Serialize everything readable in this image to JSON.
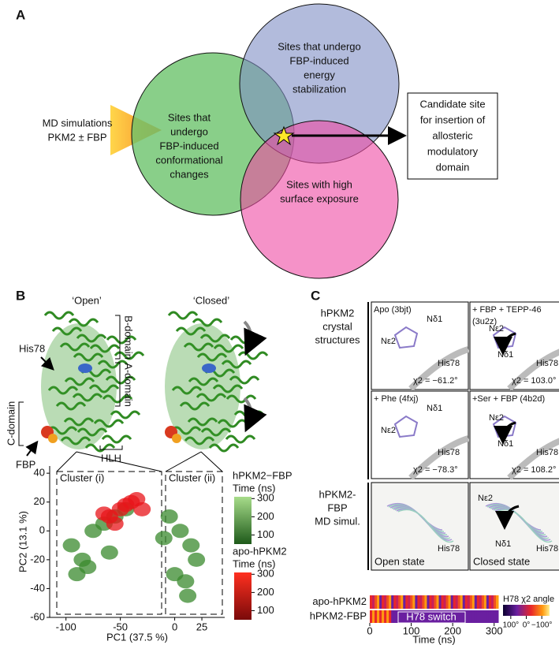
{
  "panel_a": {
    "label": "A",
    "input": [
      "MD simulations",
      "PKM2 ± FBP"
    ],
    "circles": [
      {
        "lines": [
          "Sites that",
          "undergo",
          "FBP-induced",
          "conformational",
          "changes"
        ]
      },
      {
        "lines": [
          "Sites that undergo",
          "FBP-induced",
          "energy",
          "stabilization"
        ]
      },
      {
        "lines": [
          "Sites with high",
          "surface exposure"
        ]
      }
    ],
    "result": [
      "Candidate site",
      "for insertion of",
      "allosteric",
      "modulatory",
      "domain"
    ]
  },
  "panel_b": {
    "label": "B",
    "states": [
      "‘Open’",
      "‘Closed’"
    ],
    "domains": [
      "B-domain",
      "A-domain",
      "C-domain",
      "HLH"
    ],
    "residue": "His78",
    "ligand": "FBP",
    "clusters": [
      "Cluster (i)",
      "Cluster (ii)"
    ]
  },
  "chart_data": [
    {
      "type": "scatter",
      "xlabel": "PC1 (37.5 %)",
      "ylabel": "PC2 (13.1 %)",
      "xlim": [
        -115,
        46
      ],
      "ylim": [
        -60,
        45
      ],
      "xticks": [
        -100,
        -50,
        0,
        25
      ],
      "yticks": [
        -60,
        -40,
        -20,
        0,
        20,
        40
      ],
      "colorbar_ticks": [
        100,
        200,
        300
      ],
      "clim": [
        50,
        310
      ],
      "series": [
        {
          "name": "hPKM2−FBP",
          "colorbar_label": "Time (ns)",
          "color": "#3a8a2e",
          "x": [
            -95,
            -85,
            -75,
            -65,
            -55,
            -45,
            -80,
            -60,
            -90,
            -5,
            5,
            15,
            20,
            10,
            0,
            -10,
            12
          ],
          "y": [
            -10,
            -20,
            0,
            5,
            10,
            15,
            -25,
            -15,
            -30,
            10,
            0,
            -10,
            -20,
            -35,
            -30,
            -5,
            -45
          ]
        },
        {
          "name": "apo-hPKM2",
          "colorbar_label": "Time (ns)",
          "color": "#e8141a",
          "x": [
            -60,
            -50,
            -40,
            -35,
            -45,
            -55,
            -30,
            -65
          ],
          "y": [
            10,
            15,
            20,
            22,
            18,
            5,
            15,
            12
          ]
        }
      ]
    },
    {
      "type": "heatmap",
      "rows": [
        "apo-hPKM2",
        "hPKM2-FBP"
      ],
      "annotation": "H78 switch",
      "xlabel": "Time (ns)",
      "xlim": [
        0,
        310
      ],
      "xticks": [
        0,
        100,
        200,
        300
      ],
      "colorbar_label": "H78 χ2 angle",
      "zlim": [
        150,
        -150
      ],
      "zticks": [
        {
          "value": 100,
          "label": "100°"
        },
        {
          "value": 0,
          "label": "0°"
        },
        {
          "value": -100,
          "label": "−100°"
        }
      ]
    }
  ],
  "panel_c": {
    "label": "C",
    "crystal_label": [
      "hPKM2",
      "crystal",
      "structures"
    ],
    "md_label": [
      "hPKM2-",
      "FBP",
      "MD simul."
    ],
    "residue": "His78",
    "atoms": [
      "Nδ1",
      "Nε2"
    ],
    "structures": [
      {
        "name": [
          "Apo (3bjt)"
        ],
        "chi": "χ2 = −61.2°"
      },
      {
        "name": [
          "+ FBP + TEPP-46",
          "(3u2z)"
        ],
        "chi": "χ2 = 103.0°"
      },
      {
        "name": [
          "+ Phe (4fxj)"
        ],
        "chi": "χ2 = −78.3°"
      },
      {
        "name": [
          "+Ser + FBP (4b2d)"
        ],
        "chi": "χ2 = 108.2°"
      }
    ],
    "states": [
      "Open state",
      "Closed state"
    ]
  }
}
